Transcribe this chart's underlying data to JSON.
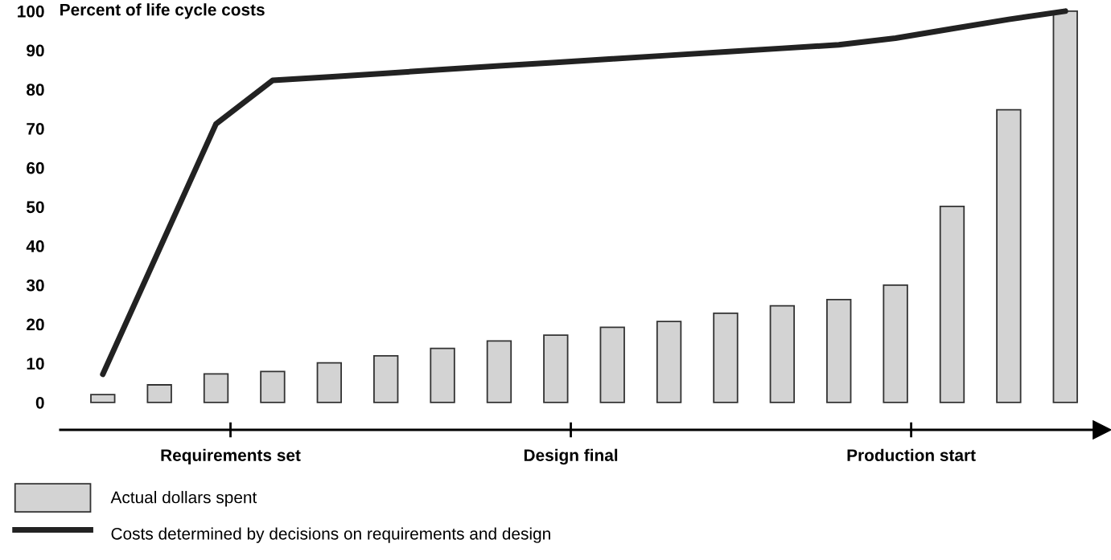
{
  "chart_data": {
    "type": "bar",
    "ylabel": "Percent of life cycle costs",
    "categories": [
      null,
      null,
      null,
      null,
      null,
      null,
      null,
      null,
      null,
      null,
      null,
      null,
      null,
      null,
      null,
      null,
      null,
      null
    ],
    "annotations": [
      "Requirements set",
      "Design final",
      "Production start"
    ],
    "ylim": [
      -7,
      101
    ],
    "yticks": [
      0,
      10,
      20,
      30,
      40,
      50,
      60,
      70,
      80,
      90,
      100
    ],
    "series": [
      {
        "name": "Actual dollars spent",
        "color": "#d3d3d3",
        "values": [
          2.0,
          4.5,
          7.3,
          7.9,
          10.1,
          11.9,
          13.8,
          15.7,
          17.2,
          19.2,
          20.7,
          22.8,
          24.7,
          26.3,
          30.0,
          50.1,
          74.8,
          100
        ]
      },
      {
        "name": "Costs determined by decisions on requirements and design",
        "type": "line",
        "color": "#222222",
        "values": [
          7.2,
          39.2,
          71.2,
          82.3,
          83.2,
          84.1,
          85.1,
          86.0,
          86.9,
          87.8,
          88.7,
          89.6,
          90.5,
          91.4,
          93.1,
          95.5,
          97.9,
          100
        ]
      }
    ],
    "legend": "bottom left",
    "grid": false
  }
}
